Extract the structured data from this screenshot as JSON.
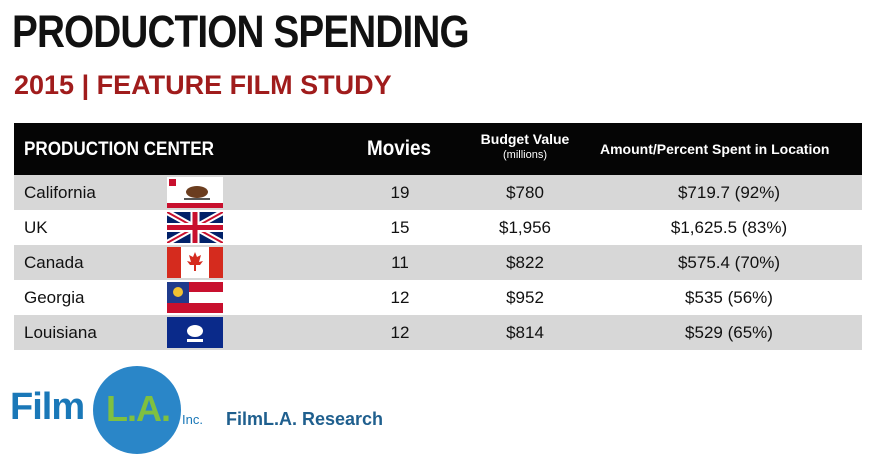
{
  "title": "PRODUCTION SPENDING",
  "subtitle": "2015 | FEATURE FILM STUDY",
  "chart_data": {
    "type": "table",
    "columns": {
      "center": "PRODUCTION CENTER",
      "movies": "Movies",
      "budget": "Budget Value",
      "budget_unit": "(millions)",
      "amount": "Amount/Percent Spent in Location"
    },
    "rows": [
      {
        "name": "California",
        "movies": "19",
        "budget": "$780",
        "amount": "$719.7 (92%)",
        "flag": "california-flag-icon"
      },
      {
        "name": "UK",
        "movies": "15",
        "budget": "$1,956",
        "amount": "$1,625.5 (83%)",
        "flag": "uk-flag-icon"
      },
      {
        "name": "Canada",
        "movies": "11",
        "budget": "$822",
        "amount": "$575.4 (70%)",
        "flag": "canada-flag-icon"
      },
      {
        "name": "Georgia",
        "movies": "12",
        "budget": "$952",
        "amount": "$535 (56%)",
        "flag": "georgia-flag-icon"
      },
      {
        "name": "Louisiana",
        "movies": "12",
        "budget": "$814",
        "amount": "$529 (65%)",
        "flag": "louisiana-flag-icon"
      }
    ]
  },
  "logo": {
    "film": "Film",
    "la": "L.A.",
    "inc": "Inc."
  },
  "research_label": "FilmL.A. Research",
  "colors": {
    "subtitle": "#a01c1c",
    "header_bg": "#050505",
    "row_shade": "#d7d7d7",
    "logo_blue": "#2a86c8",
    "logo_green": "#7fc040"
  }
}
